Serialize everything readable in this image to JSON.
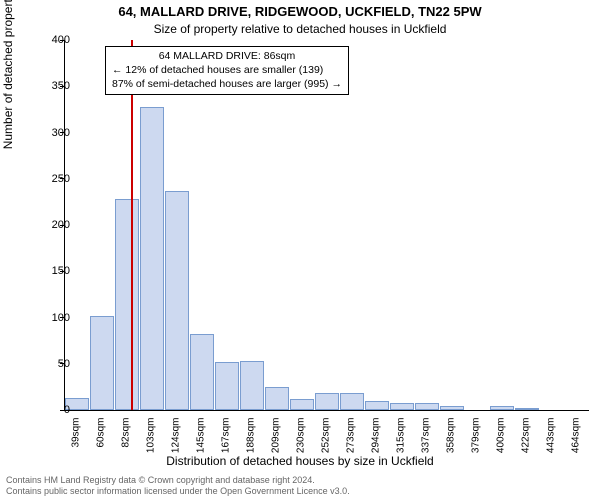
{
  "titles": {
    "line1": "64, MALLARD DRIVE, RIDGEWOOD, UCKFIELD, TN22 5PW",
    "line2": "Size of property relative to detached houses in Uckfield"
  },
  "chart": {
    "type": "histogram",
    "ylabel": "Number of detached properties",
    "xlabel": "Distribution of detached houses by size in Uckfield",
    "ylim": [
      0,
      400
    ],
    "ytick_step": 50,
    "background_color": "#ffffff",
    "bar_fill": "#cdd9f0",
    "bar_stroke": "#7a9dd0",
    "reference_line_color": "#cc0000",
    "reference_value_sqm": 86,
    "categories": [
      "39sqm",
      "60sqm",
      "82sqm",
      "103sqm",
      "124sqm",
      "145sqm",
      "167sqm",
      "188sqm",
      "209sqm",
      "230sqm",
      "252sqm",
      "273sqm",
      "294sqm",
      "315sqm",
      "337sqm",
      "358sqm",
      "379sqm",
      "400sqm",
      "422sqm",
      "443sqm",
      "464sqm"
    ],
    "values": [
      13,
      102,
      228,
      328,
      237,
      82,
      52,
      53,
      25,
      12,
      18,
      18,
      10,
      8,
      8,
      4,
      0,
      4,
      2,
      0,
      0
    ],
    "axis_fontsize": 11,
    "tick_fontsize": 10,
    "label_fontsize": 12
  },
  "annotation": {
    "line1": "64 MALLARD DRIVE: 86sqm",
    "line2": "← 12% of detached houses are smaller (139)",
    "line3": "87% of semi-detached houses are larger (995) →",
    "box_border_color": "#000000",
    "box_background": "#ffffff",
    "fontsize": 10.5
  },
  "footer": {
    "line1": "Contains HM Land Registry data © Crown copyright and database right 2024.",
    "line2": "Contains public sector information licensed under the Open Government Licence v3.0."
  }
}
